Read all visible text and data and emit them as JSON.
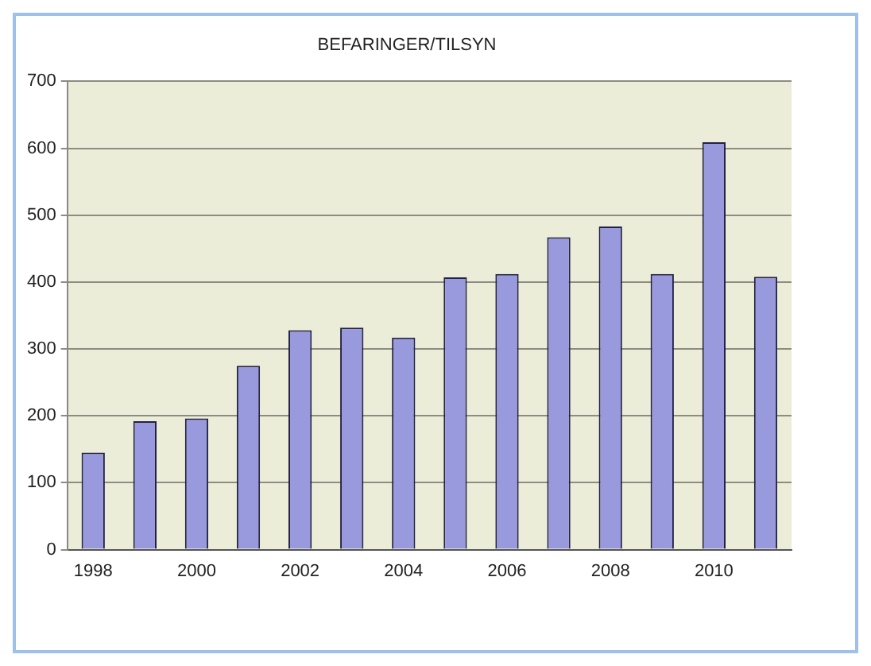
{
  "chart_data": {
    "type": "bar",
    "title": "BEFARINGER/TILSYN",
    "categories": [
      "1998",
      null,
      "2000",
      null,
      "2002",
      null,
      "2004",
      null,
      "2006",
      null,
      "2008",
      null,
      "2010",
      null
    ],
    "values": [
      145,
      192,
      196,
      275,
      328,
      332,
      317,
      407,
      412,
      467,
      483,
      412,
      609,
      408
    ],
    "color": "#9999dd",
    "ylim": [
      0,
      700
    ],
    "yticks": [
      0,
      100,
      200,
      300,
      400,
      500,
      600,
      700
    ],
    "grid": "y",
    "legend": false
  }
}
